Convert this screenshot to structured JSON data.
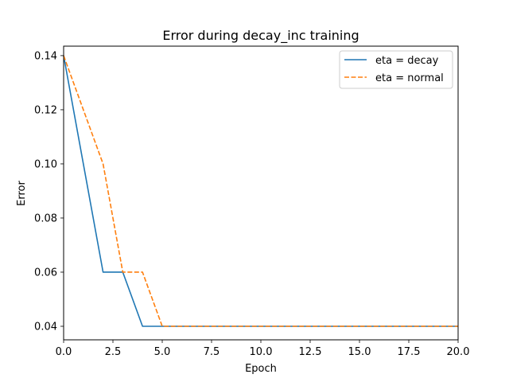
{
  "chart_data": {
    "type": "line",
    "title": "Error during decay_inc training",
    "xlabel": "Epoch",
    "ylabel": "Error",
    "xlim": [
      0,
      20
    ],
    "ylim": [
      0.035,
      0.1435
    ],
    "x_ticks": [
      0,
      2.5,
      5,
      7.5,
      10,
      12.5,
      15,
      17.5,
      20
    ],
    "x_tick_labels": [
      "0.0",
      "2.5",
      "5.0",
      "7.5",
      "10.0",
      "12.5",
      "15.0",
      "17.5",
      "20.0"
    ],
    "y_ticks": [
      0.04,
      0.06,
      0.08,
      0.1,
      0.12,
      0.14
    ],
    "y_tick_labels": [
      "0.04",
      "0.06",
      "0.08",
      "0.10",
      "0.12",
      "0.14"
    ],
    "grid": false,
    "legend_position": "top-right",
    "series": [
      {
        "name": "eta = decay",
        "color": "#1f77b4",
        "style": "solid",
        "x": [
          0,
          1,
          2,
          3,
          4,
          5,
          6,
          7,
          8,
          9,
          10,
          11,
          12,
          13,
          14,
          15,
          16,
          17,
          18,
          19,
          20
        ],
        "values": [
          0.14,
          0.1,
          0.06,
          0.06,
          0.04,
          0.04,
          0.04,
          0.04,
          0.04,
          0.04,
          0.04,
          0.04,
          0.04,
          0.04,
          0.04,
          0.04,
          0.04,
          0.04,
          0.04,
          0.04,
          0.04
        ]
      },
      {
        "name": "eta = normal",
        "color": "#ff7f0e",
        "style": "dashed",
        "x": [
          0,
          1,
          2,
          3,
          4,
          5,
          6,
          7,
          8,
          9,
          10,
          11,
          12,
          13,
          14,
          15,
          16,
          17,
          18,
          19,
          20
        ],
        "values": [
          0.14,
          0.12,
          0.1,
          0.06,
          0.06,
          0.04,
          0.04,
          0.04,
          0.04,
          0.04,
          0.04,
          0.04,
          0.04,
          0.04,
          0.04,
          0.04,
          0.04,
          0.04,
          0.04,
          0.04,
          0.04
        ]
      }
    ]
  }
}
